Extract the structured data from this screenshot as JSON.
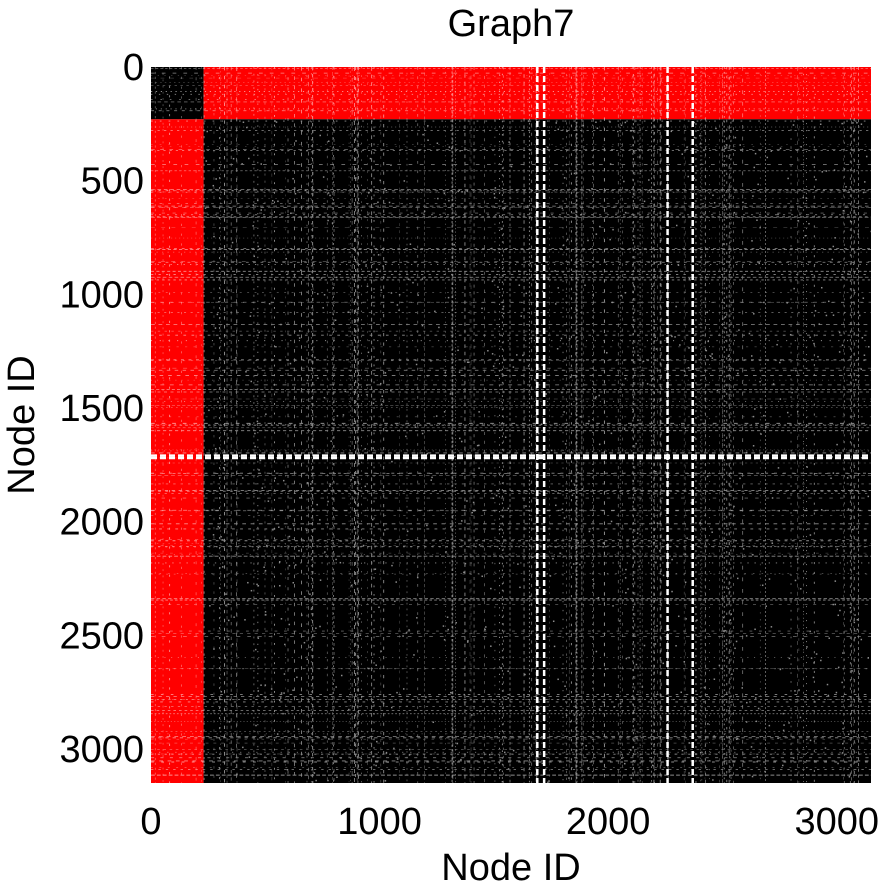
{
  "chart_data": {
    "type": "heatmap",
    "subtype": "adjacency-matrix spy plot",
    "title": "Graph7",
    "xlabel": "Node ID",
    "ylabel": "Node ID",
    "xlim": [
      0,
      3150
    ],
    "ylim": [
      3150,
      0
    ],
    "xticks": [
      0,
      1000,
      2000,
      3000
    ],
    "yticks": [
      0,
      500,
      1000,
      1500,
      2000,
      2500,
      3000
    ],
    "xtick_labels": [
      "0",
      "1000",
      "2000",
      "3000"
    ],
    "ytick_labels": [
      "0",
      "500",
      "1000",
      "1500",
      "2000",
      "2500",
      "3000"
    ],
    "grid": false,
    "legend": null,
    "blocks": [
      {
        "rows": [
          0,
          230
        ],
        "cols": [
          0,
          230
        ],
        "color": "black"
      },
      {
        "rows": [
          0,
          230
        ],
        "cols": [
          230,
          3150
        ],
        "color": "red"
      },
      {
        "rows": [
          230,
          3150
        ],
        "cols": [
          0,
          230
        ],
        "color": "red"
      },
      {
        "rows": [
          230,
          3150
        ],
        "cols": [
          230,
          3150
        ],
        "color": "black"
      }
    ],
    "gap_columns": [
      1690,
      1720,
      2260,
      2370
    ],
    "gap_rows": [
      1710,
      1720
    ]
  },
  "colors": {
    "cross_block": "#ff0000",
    "intra_block": "#000000",
    "background": "#ffffff"
  }
}
